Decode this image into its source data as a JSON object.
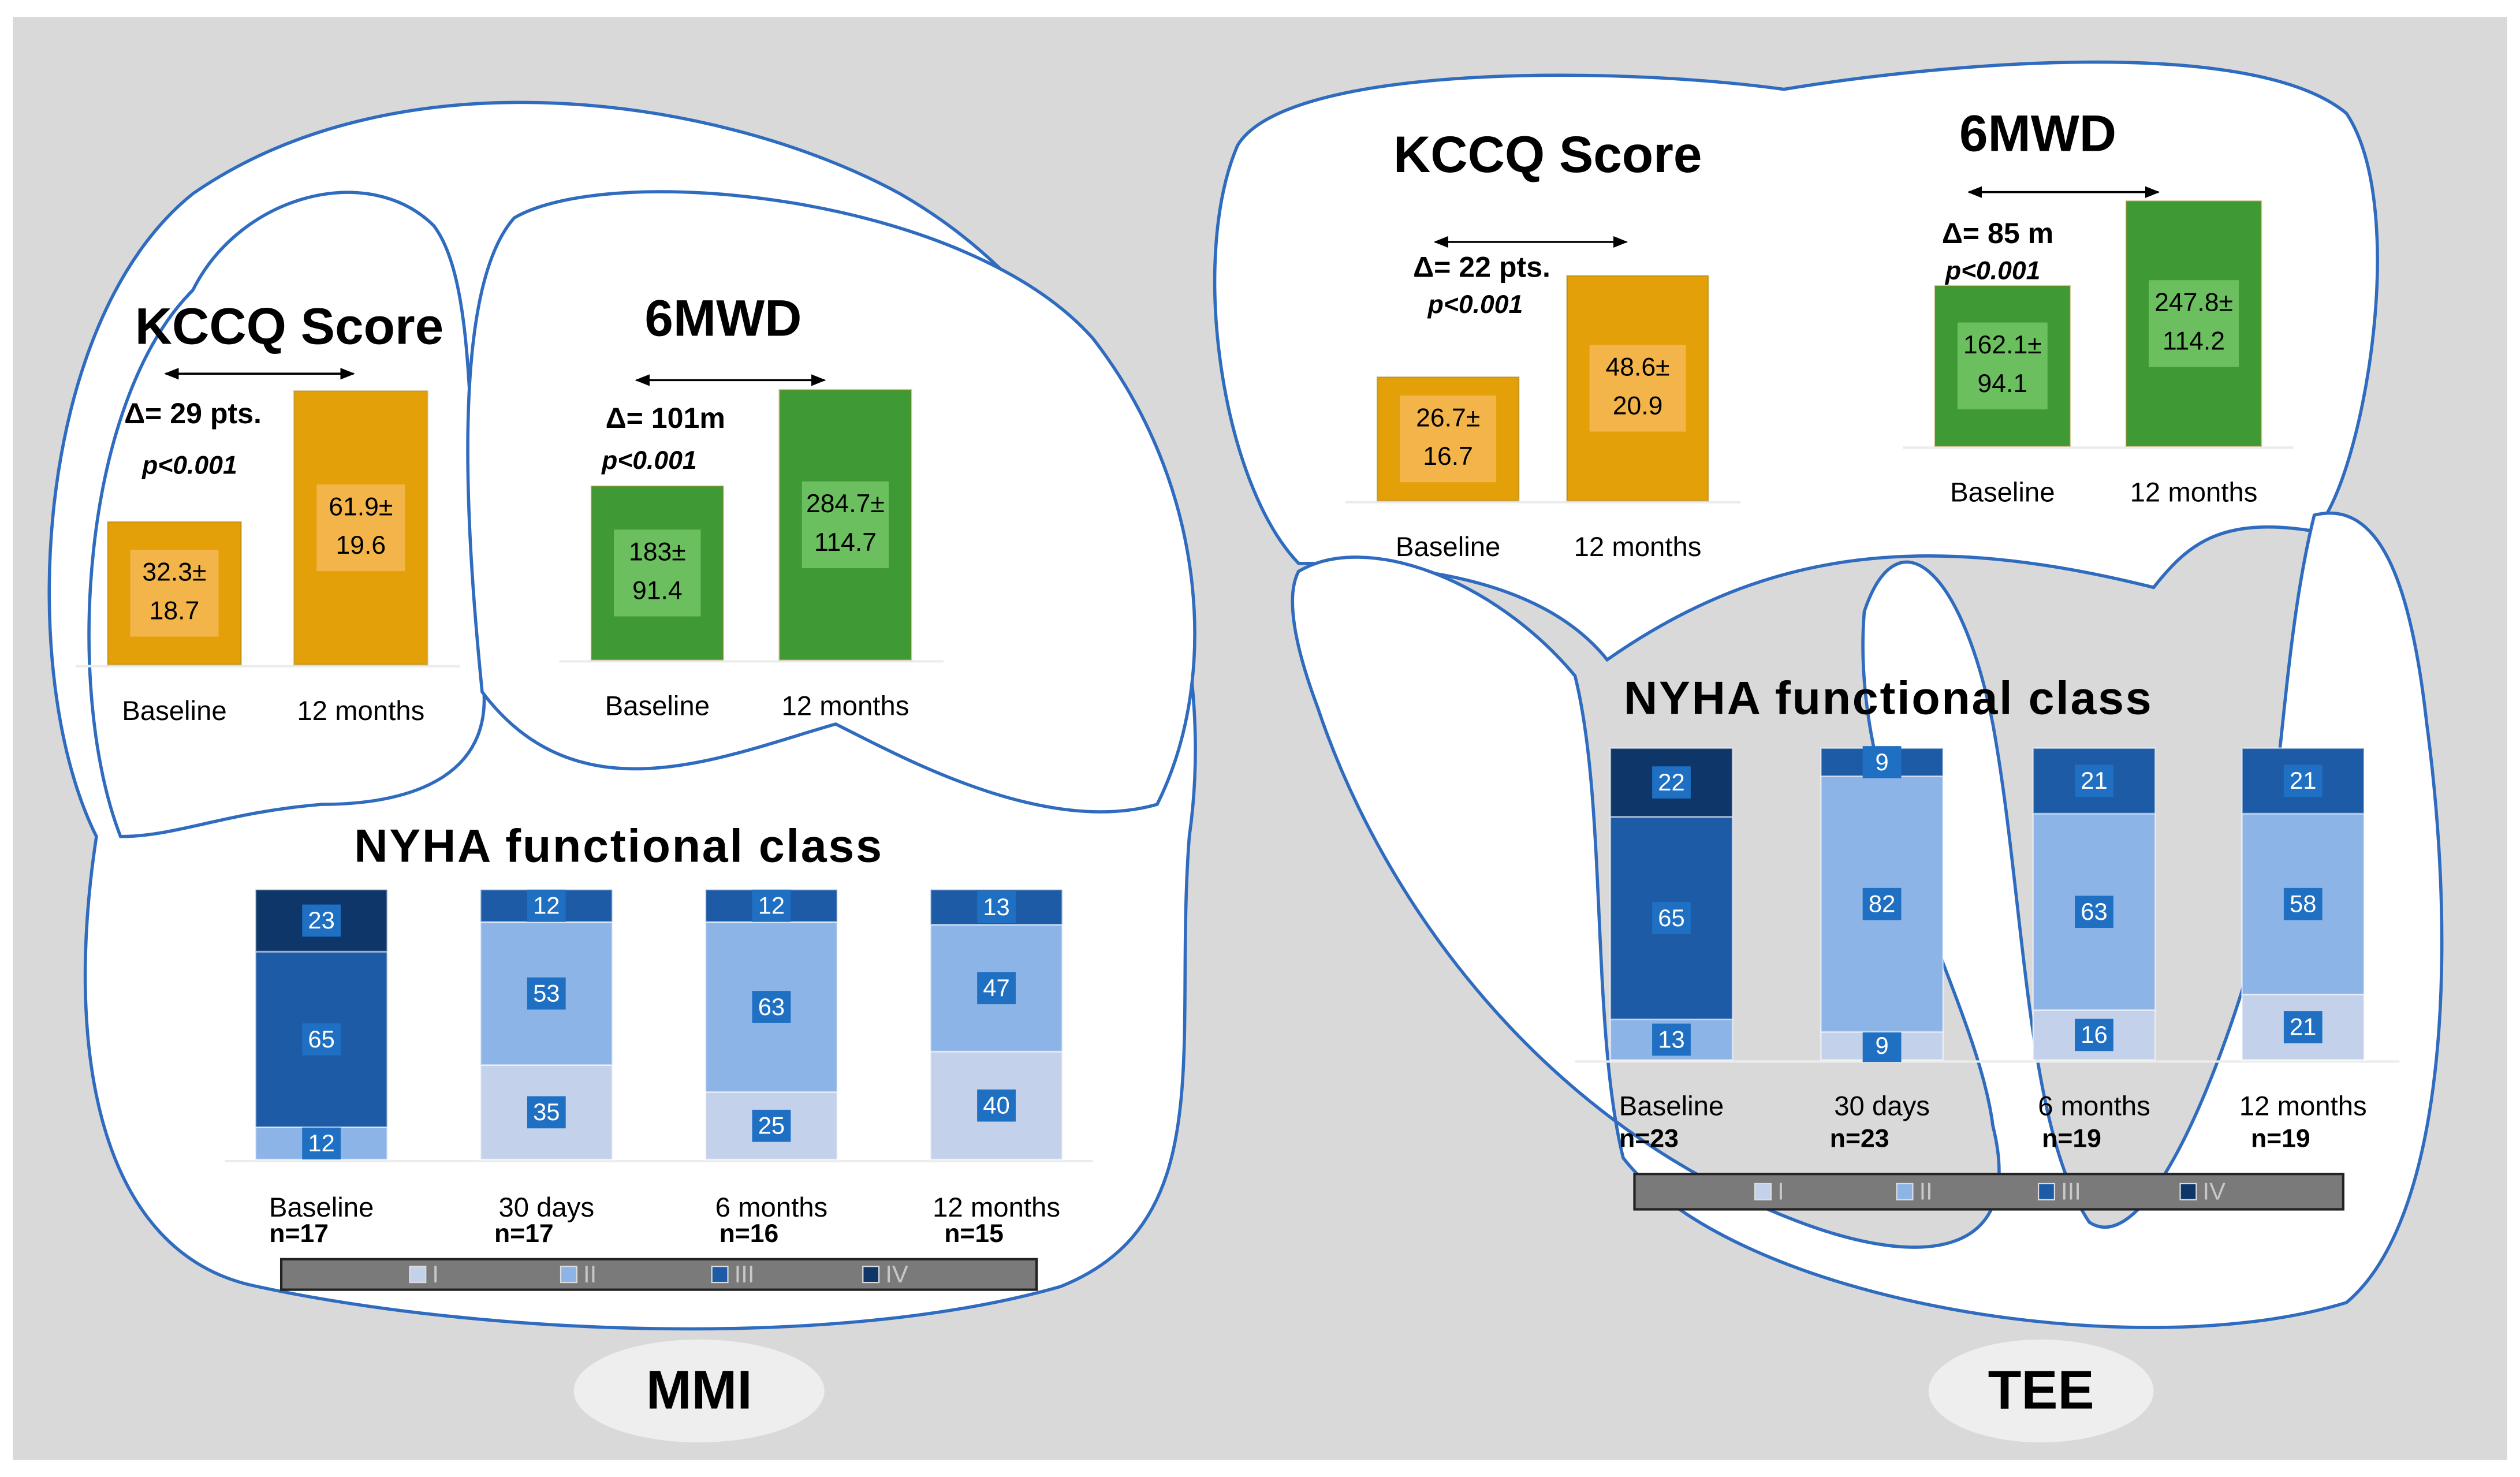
{
  "panels": [
    {
      "label": "MMI"
    },
    {
      "label": "TEE"
    }
  ],
  "chart_data": [
    {
      "type": "bar",
      "title": "KCCQ Score",
      "annotation": "Δ= 29 pts.",
      "p_value": "p<0.001",
      "categories": [
        "Baseline",
        "12 months"
      ],
      "values": [
        32.3,
        61.9
      ],
      "value_labels": [
        "32.3±",
        "61.9±"
      ],
      "sd": [
        18.7,
        19.6
      ],
      "color": "#e3a008",
      "label_color": "#f3b54a"
    },
    {
      "type": "bar",
      "title": "6MWD",
      "annotation": "Δ= 101m",
      "p_value": "p<0.001",
      "categories": [
        "Baseline",
        "12 months"
      ],
      "values": [
        183,
        284.7
      ],
      "value_labels": [
        "183±",
        "284.7±"
      ],
      "sd": [
        91.4,
        114.7
      ],
      "color": "#3f9a35",
      "label_color": "#6cbf5e"
    },
    {
      "type": "stacked_bar",
      "title": "NYHA functional class",
      "categories": [
        "Baseline",
        "30 days",
        "6 months",
        "12 months"
      ],
      "n": [
        "n=17",
        "n=17",
        "n=16",
        "n=15"
      ],
      "series": [
        {
          "name": "I",
          "color": "#c3d2ea",
          "values": [
            null,
            35,
            25,
            40
          ]
        },
        {
          "name": "II",
          "color": "#8db4e6",
          "values": [
            12,
            53,
            63,
            47
          ]
        },
        {
          "name": "III",
          "color": "#1d5ba6",
          "values": [
            65,
            12,
            12,
            13
          ]
        },
        {
          "name": "IV",
          "color": "#0e3669",
          "values": [
            23,
            null,
            null,
            null
          ]
        }
      ]
    },
    {
      "type": "bar",
      "title": "KCCQ Score",
      "annotation": "Δ= 22 pts.",
      "p_value": "p<0.001",
      "categories": [
        "Baseline",
        "12 months"
      ],
      "values": [
        26.7,
        48.6
      ],
      "value_labels": [
        "26.7±",
        "48.6±"
      ],
      "sd": [
        16.7,
        20.9
      ],
      "color": "#e3a008",
      "label_color": "#f3b54a"
    },
    {
      "type": "bar",
      "title": "6MWD",
      "annotation": "Δ= 85 m",
      "p_value": "p<0.001",
      "categories": [
        "Baseline",
        "12 months"
      ],
      "values": [
        162.1,
        247.8
      ],
      "value_labels": [
        "162.1±",
        "247.8±"
      ],
      "sd": [
        94.1,
        114.2
      ],
      "color": "#3f9a35",
      "label_color": "#6cbf5e"
    },
    {
      "type": "stacked_bar",
      "title": "NYHA functional class",
      "categories": [
        "Baseline",
        "30 days",
        "6 months",
        "12 months"
      ],
      "n": [
        "n=23",
        "n=23",
        "n=19",
        "n=19"
      ],
      "series": [
        {
          "name": "I",
          "color": "#c3d2ea",
          "values": [
            null,
            9,
            16,
            21
          ]
        },
        {
          "name": "II",
          "color": "#8db4e6",
          "values": [
            13,
            82,
            63,
            58
          ]
        },
        {
          "name": "III",
          "color": "#1d5ba6",
          "values": [
            65,
            9,
            21,
            21
          ]
        },
        {
          "name": "IV",
          "color": "#0e3669",
          "values": [
            22,
            null,
            null,
            null
          ]
        }
      ]
    }
  ]
}
